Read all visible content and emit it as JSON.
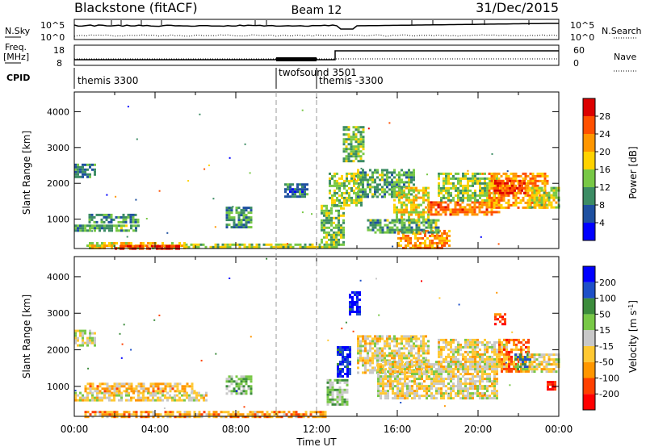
{
  "header": {
    "station": "Blackstone (fitACF)",
    "beam": "Beam 12",
    "date": "31/Dec/2015"
  },
  "summary": {
    "nsky_label": "N.Sky",
    "nsearch_label": "N.Search",
    "freq_label": "Freq.",
    "freq_unit": "[MHz]",
    "nave_label": "Nave",
    "cpid_label": "CPID",
    "left_ticks_top": [
      "10^5",
      "10^0"
    ],
    "right_ticks_top": [
      "10^5",
      "10^0"
    ],
    "freq_ticks": [
      "18",
      "8"
    ],
    "nave_ticks": [
      "60",
      "0"
    ],
    "cpid_entries": [
      {
        "label": "themis 3300",
        "start": 0
      },
      {
        "label": "twofsound 3501",
        "start": 10
      },
      {
        "label": "themis -3300",
        "start": 12
      }
    ]
  },
  "chart_data": [
    {
      "type": "heatmap",
      "panel": "power",
      "ylabel": "Slant Range [km]",
      "xlabel": "Time UT",
      "x_ticks": [
        "00:00",
        "04:00",
        "08:00",
        "12:00",
        "16:00",
        "20:00",
        "00:00"
      ],
      "x_range_hours": [
        0,
        24
      ],
      "y_ticks": [
        1000,
        2000,
        3000,
        4000
      ],
      "ylim": [
        180,
        4550
      ],
      "colorbar": {
        "label": "Power [dB]",
        "ticks": [
          "28",
          "24",
          "20",
          "16",
          "12",
          "8",
          "4"
        ],
        "colors": [
          "#0000ff",
          "#1e50a0",
          "#3c8c64",
          "#78c846",
          "#ffd200",
          "#ff9600",
          "#ff5000",
          "#dc0000"
        ]
      },
      "regions": [
        {
          "t0": 0.0,
          "t1": 1.0,
          "r0": 2150,
          "r1": 2550,
          "level": 0.25
        },
        {
          "t0": 0.0,
          "t1": 3.2,
          "r0": 650,
          "r1": 850,
          "level": 0.35
        },
        {
          "t0": 0.7,
          "t1": 3.2,
          "r0": 900,
          "r1": 1150,
          "level": 0.3
        },
        {
          "t0": 0.6,
          "t1": 5.5,
          "r0": 190,
          "r1": 360,
          "level": 0.6
        },
        {
          "t0": 2.0,
          "t1": 5.2,
          "r0": 190,
          "r1": 280,
          "level": 0.95
        },
        {
          "t0": 5.5,
          "t1": 13.0,
          "r0": 190,
          "r1": 320,
          "level": 0.45
        },
        {
          "t0": 7.5,
          "t1": 8.8,
          "r0": 750,
          "r1": 1350,
          "level": 0.3
        },
        {
          "t0": 10.4,
          "t1": 11.5,
          "r0": 1600,
          "r1": 2000,
          "level": 0.2
        },
        {
          "t0": 12.2,
          "t1": 13.3,
          "r0": 300,
          "r1": 1400,
          "level": 0.4
        },
        {
          "t0": 12.6,
          "t1": 14.2,
          "r0": 1400,
          "r1": 2300,
          "level": 0.45
        },
        {
          "t0": 13.3,
          "t1": 14.3,
          "r0": 2600,
          "r1": 3600,
          "level": 0.4
        },
        {
          "t0": 14.0,
          "t1": 16.8,
          "r0": 1600,
          "r1": 2400,
          "level": 0.35
        },
        {
          "t0": 15.8,
          "t1": 17.5,
          "r0": 900,
          "r1": 1900,
          "level": 0.55
        },
        {
          "t0": 17.5,
          "t1": 21.0,
          "r0": 1100,
          "r1": 1500,
          "level": 0.78
        },
        {
          "t0": 16.0,
          "t1": 18.6,
          "r0": 200,
          "r1": 700,
          "level": 0.72
        },
        {
          "t0": 18.0,
          "t1": 21.0,
          "r0": 1500,
          "r1": 2300,
          "level": 0.45
        },
        {
          "t0": 20.5,
          "t1": 23.5,
          "r0": 1300,
          "r1": 2300,
          "level": 0.7
        },
        {
          "t0": 20.8,
          "t1": 22.3,
          "r0": 1700,
          "r1": 2100,
          "level": 0.92
        },
        {
          "t0": 22.5,
          "t1": 24.0,
          "r0": 1300,
          "r1": 1900,
          "level": 0.5
        },
        {
          "t0": 14.5,
          "t1": 18.0,
          "r0": 600,
          "r1": 1000,
          "level": 0.35
        }
      ]
    },
    {
      "type": "heatmap",
      "panel": "velocity",
      "ylabel": "Slant Range [km]",
      "xlabel": "Time UT",
      "x_ticks": [
        "00:00",
        "04:00",
        "08:00",
        "12:00",
        "16:00",
        "20:00",
        "00:00"
      ],
      "x_range_hours": [
        0,
        24
      ],
      "y_ticks": [
        1000,
        2000,
        3000,
        4000
      ],
      "ylim": [
        180,
        4550
      ],
      "colorbar": {
        "label": "Velocity [m s^-1]",
        "ticks": [
          "200",
          "100",
          "50",
          "15",
          "-15",
          "-50",
          "-100",
          "-200"
        ],
        "colors": [
          "#ff0000",
          "#ff4000",
          "#ff9600",
          "#ffc832",
          "#c8c8c8",
          "#78c846",
          "#3c8c3c",
          "#1e50c8",
          "#0000ff"
        ]
      },
      "regions": [
        {
          "t0": 0.0,
          "t1": 1.0,
          "r0": 2150,
          "r1": 2550,
          "level": 0.5
        },
        {
          "t0": 0.0,
          "t1": 6.5,
          "r0": 650,
          "r1": 850,
          "level": 0.45
        },
        {
          "t0": 0.5,
          "t1": 6.0,
          "r0": 880,
          "r1": 1100,
          "level": 0.32
        },
        {
          "t0": 0.5,
          "t1": 12.5,
          "r0": 190,
          "r1": 330,
          "level": 0.3
        },
        {
          "t0": 7.5,
          "t1": 8.8,
          "r0": 800,
          "r1": 1300,
          "level": 0.62
        },
        {
          "t0": 12.5,
          "t1": 13.5,
          "r0": 500,
          "r1": 1200,
          "level": 0.62
        },
        {
          "t0": 13.0,
          "t1": 13.7,
          "r0": 1300,
          "r1": 2100,
          "level": 0.95
        },
        {
          "t0": 13.6,
          "t1": 14.2,
          "r0": 3000,
          "r1": 3600,
          "level": 0.95
        },
        {
          "t0": 14.0,
          "t1": 17.5,
          "r0": 1400,
          "r1": 2400,
          "level": 0.45
        },
        {
          "t0": 15.0,
          "t1": 21.0,
          "r0": 700,
          "r1": 1700,
          "level": 0.45
        },
        {
          "t0": 18.0,
          "t1": 21.5,
          "r0": 1500,
          "r1": 2300,
          "level": 0.45
        },
        {
          "t0": 21.0,
          "t1": 22.5,
          "r0": 1400,
          "r1": 2300,
          "level": 0.2
        },
        {
          "t0": 21.8,
          "t1": 22.6,
          "r0": 1500,
          "r1": 1900,
          "level": 0.7
        },
        {
          "t0": 22.5,
          "t1": 24.0,
          "r0": 1400,
          "r1": 1900,
          "level": 0.45
        },
        {
          "t0": 23.4,
          "t1": 23.8,
          "r0": 950,
          "r1": 1150,
          "level": 0.03
        },
        {
          "t0": 20.8,
          "t1": 21.3,
          "r0": 2700,
          "r1": 3000,
          "level": 0.1
        }
      ]
    }
  ]
}
